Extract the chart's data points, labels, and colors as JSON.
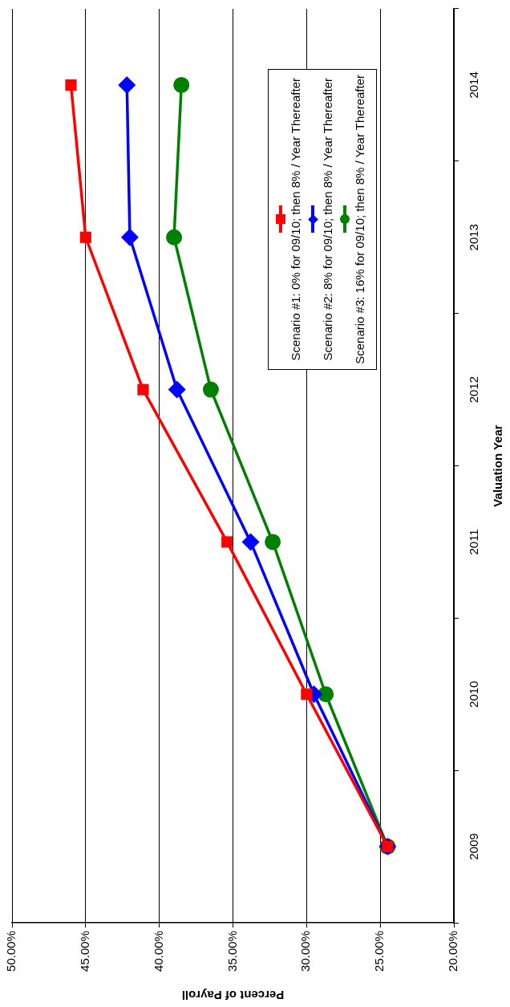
{
  "chart_data": {
    "type": "line",
    "orientation": "horizontal",
    "xlabel": "Percent of Payroll",
    "ylabel": "Valuation Year",
    "categories": [
      "2014",
      "2013",
      "2012",
      "2011",
      "2010",
      "2009"
    ],
    "series": [
      {
        "name": "Scenario #1: 0% for 09/10; then 8% / Year Thereafter",
        "color": "#ff0000",
        "marker": "square",
        "values": [
          46.0,
          45.0,
          41.1,
          35.4,
          30.0,
          24.5
        ]
      },
      {
        "name": "Scenario #2: 8% for 09/10; then 8% / Year Thereafter",
        "color": "#0000ff",
        "marker": "diamond",
        "values": [
          42.2,
          42.0,
          38.8,
          33.8,
          29.5,
          24.5
        ]
      },
      {
        "name": "Scenario #3: 16% for 09/10; then 8% / Year Thereafter",
        "color": "#008000",
        "marker": "circle",
        "values": [
          38.5,
          39.0,
          36.5,
          32.3,
          28.7,
          24.5
        ]
      }
    ],
    "xlim": [
      50,
      20
    ],
    "xticks": [
      {
        "value": 50,
        "label": "50.00%"
      },
      {
        "value": 45,
        "label": "45.00%"
      },
      {
        "value": 40,
        "label": "40.00%"
      },
      {
        "value": 35,
        "label": "35.00%"
      },
      {
        "value": 30,
        "label": "30.00%"
      },
      {
        "value": 25,
        "label": "25.00%"
      },
      {
        "value": 20,
        "label": "20.00%"
      }
    ],
    "grid": "x",
    "legend": "top right",
    "line_style": "solid"
  }
}
